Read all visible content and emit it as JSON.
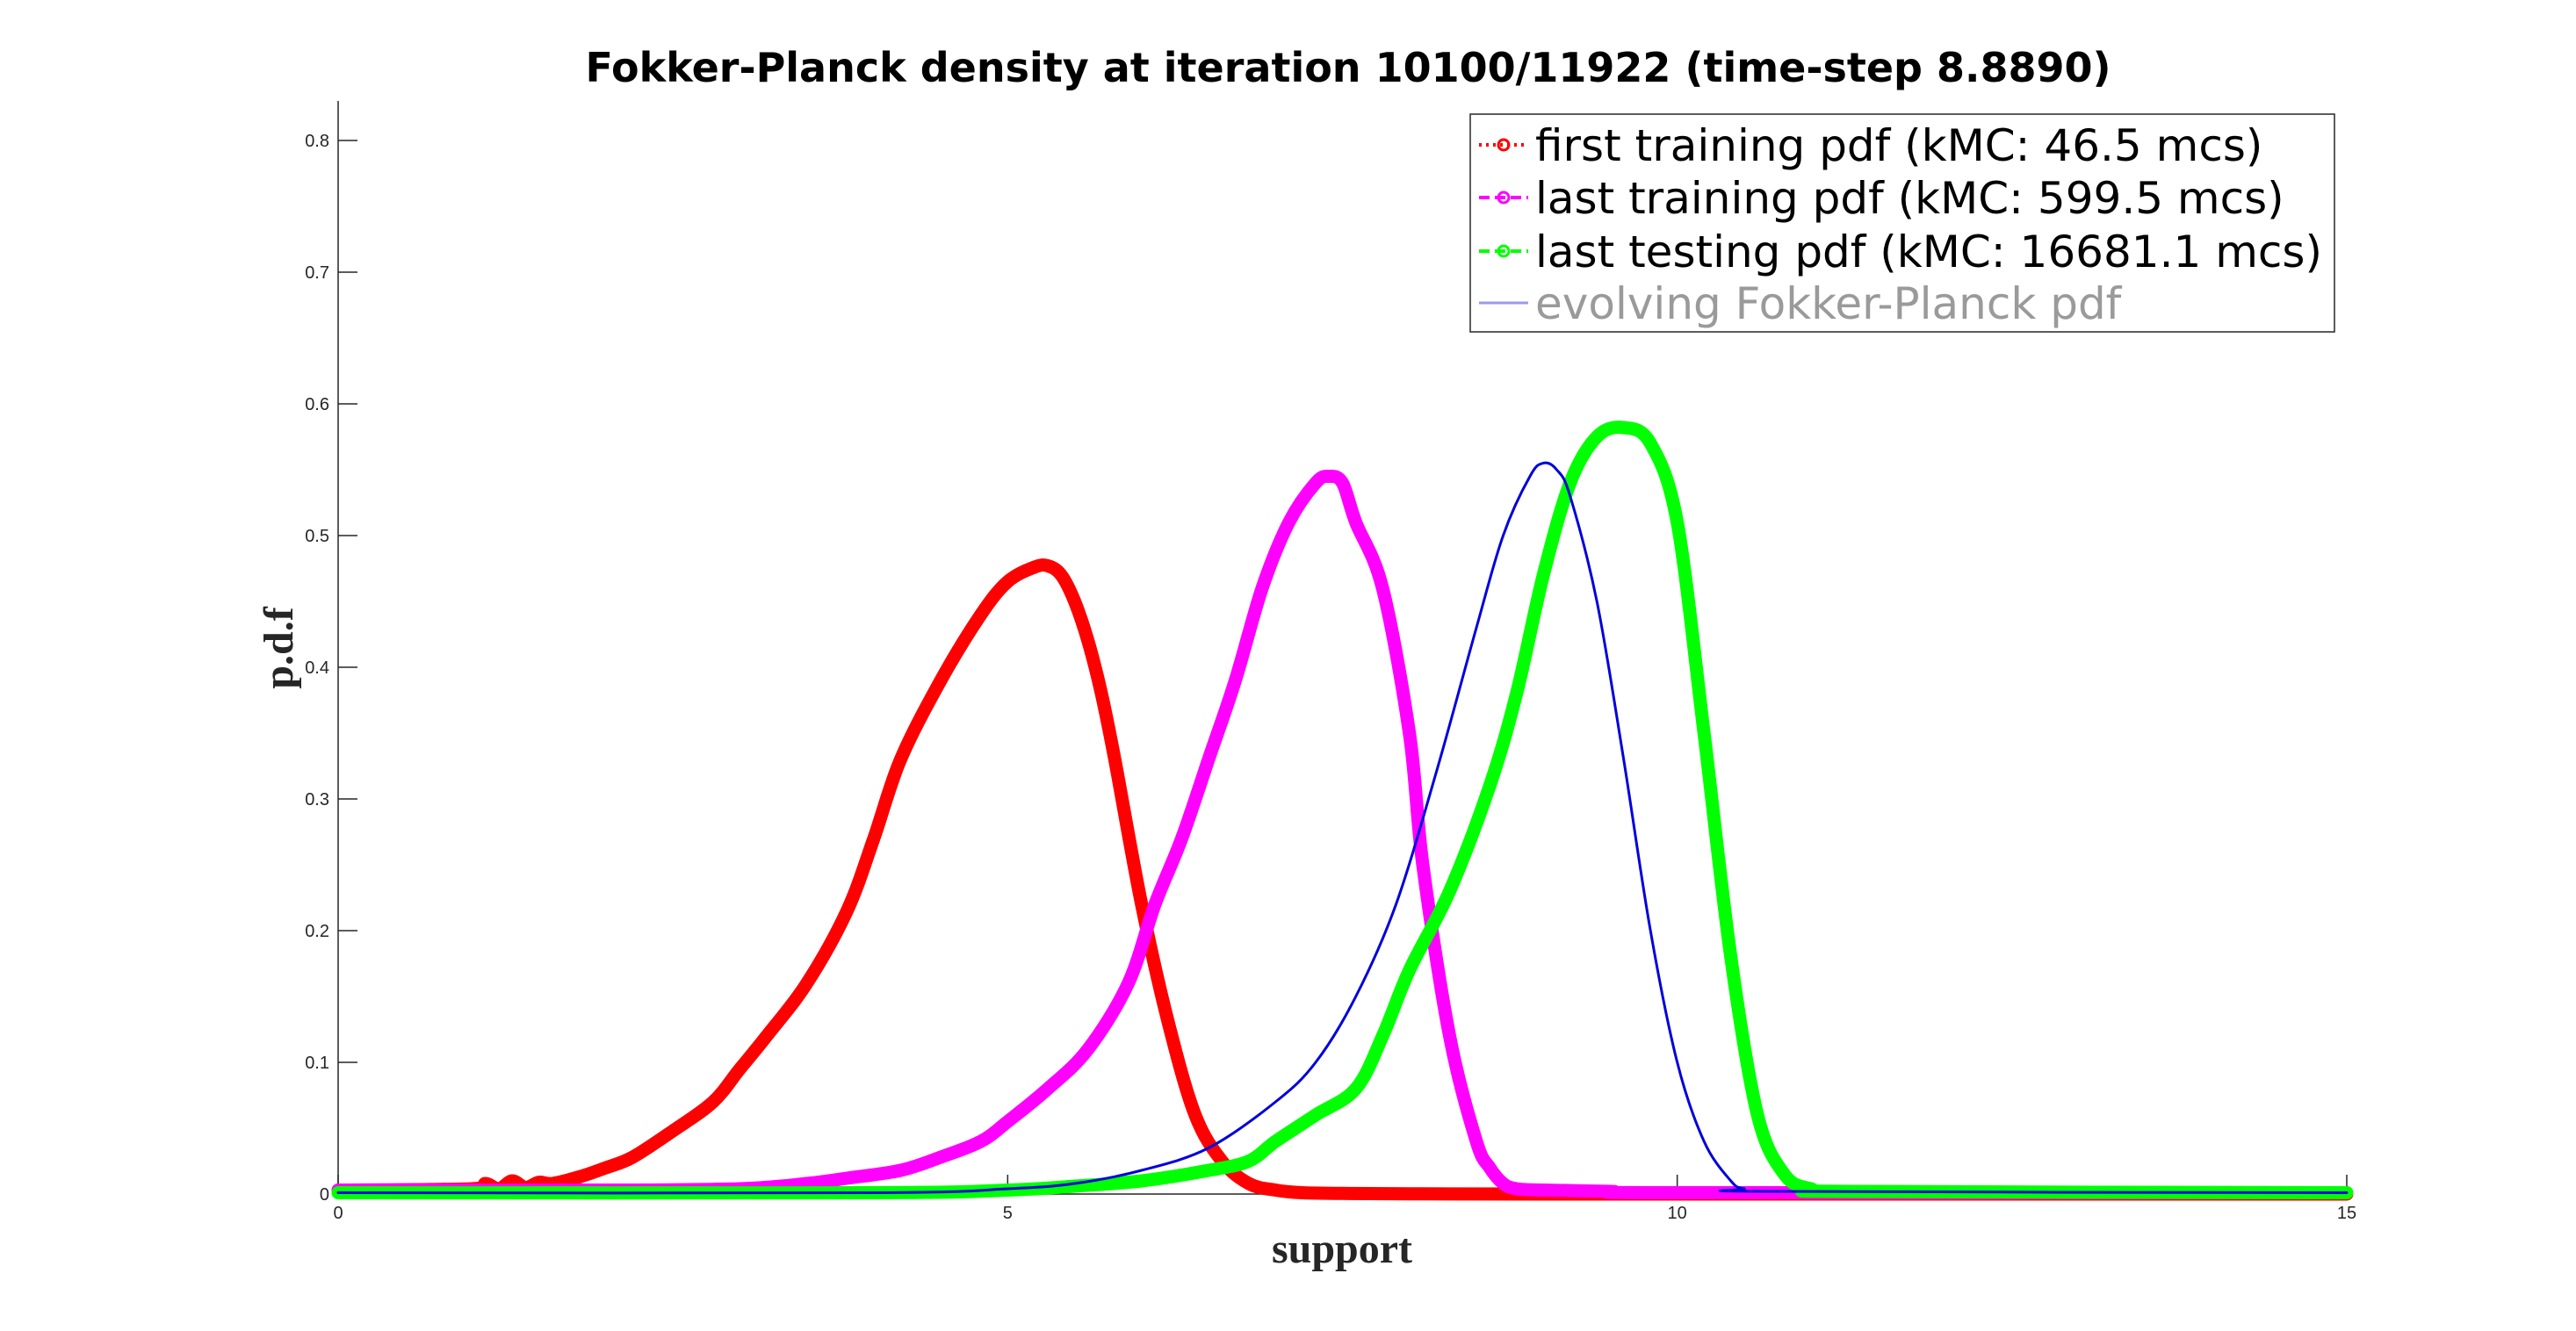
{
  "chart_data": {
    "type": "line",
    "title": "Fokker-Planck density at iteration 10100/11922 (time-step 8.8890)",
    "xlabel": "support",
    "ylabel": "p.d.f",
    "xlim": [
      0,
      15
    ],
    "ylim": [
      0,
      0.83
    ],
    "xticks": [
      "0",
      "5",
      "10",
      "15"
    ],
    "xtick_values": [
      0,
      5,
      10,
      15
    ],
    "yticks": [
      "0",
      "0.1",
      "0.2",
      "0.3",
      "0.4",
      "0.5",
      "0.6",
      "0.7",
      "0.8"
    ],
    "ytick_values": [
      0,
      0.1,
      0.2,
      0.3,
      0.4,
      0.5,
      0.6,
      0.7,
      0.8
    ],
    "grid": false,
    "legend_position": "top-right",
    "series": [
      {
        "name": "first training pdf (kMC: 46.5 mcs)",
        "color": "#ff0000",
        "style": "thick",
        "x": [
          0,
          1.0,
          1.1,
          1.2,
          1.3,
          1.4,
          1.5,
          1.6,
          1.8,
          2.0,
          2.2,
          2.5,
          2.8,
          3.0,
          3.2,
          3.5,
          3.8,
          4.0,
          4.2,
          4.5,
          4.8,
          5.0,
          5.2,
          5.3,
          5.4,
          5.5,
          5.6,
          5.7,
          5.8,
          6.0,
          6.2,
          6.4,
          6.6,
          6.8,
          7.0,
          7.2,
          7.5,
          8.0,
          9.0,
          15
        ],
        "y": [
          0.003,
          0.004,
          0.008,
          0.004,
          0.01,
          0.005,
          0.009,
          0.008,
          0.013,
          0.02,
          0.028,
          0.048,
          0.07,
          0.095,
          0.12,
          0.16,
          0.215,
          0.27,
          0.33,
          0.39,
          0.44,
          0.465,
          0.476,
          0.477,
          0.47,
          0.45,
          0.42,
          0.38,
          0.33,
          0.22,
          0.13,
          0.06,
          0.025,
          0.008,
          0.003,
          0.001,
          0.0005,
          0.0002,
          0,
          0
        ]
      },
      {
        "name": "last training pdf (kMC: 599.5 mcs)",
        "color": "#ff00ff",
        "style": "thick",
        "x": [
          0,
          2.0,
          3.0,
          3.5,
          3.8,
          4.2,
          4.5,
          4.8,
          5.0,
          5.3,
          5.6,
          5.9,
          6.1,
          6.3,
          6.5,
          6.7,
          6.9,
          7.1,
          7.3,
          7.4,
          7.5,
          7.6,
          7.8,
          8.0,
          8.1,
          8.3,
          8.5,
          8.6,
          8.7,
          8.8,
          9.0,
          9.5,
          10.0,
          15
        ],
        "y": [
          0.003,
          0.003,
          0.004,
          0.008,
          0.012,
          0.018,
          0.028,
          0.04,
          0.055,
          0.08,
          0.11,
          0.16,
          0.22,
          0.27,
          0.33,
          0.39,
          0.46,
          0.51,
          0.54,
          0.545,
          0.54,
          0.51,
          0.46,
          0.35,
          0.25,
          0.12,
          0.04,
          0.02,
          0.008,
          0.004,
          0.003,
          0.002,
          0.001,
          0.001
        ]
      },
      {
        "name": "last testing pdf (kMC: 16681.1 mcs)",
        "color": "#00ff00",
        "style": "thick",
        "x": [
          0,
          4.0,
          5.0,
          5.5,
          6.0,
          6.5,
          6.8,
          7.0,
          7.3,
          7.6,
          7.8,
          8.0,
          8.3,
          8.6,
          8.8,
          9.0,
          9.2,
          9.4,
          9.6,
          9.8,
          10.0,
          10.2,
          10.4,
          10.6,
          10.8,
          11.0,
          11.3,
          15
        ],
        "y": [
          0.001,
          0.001,
          0.003,
          0.006,
          0.01,
          0.018,
          0.025,
          0.04,
          0.06,
          0.08,
          0.12,
          0.17,
          0.23,
          0.31,
          0.38,
          0.47,
          0.54,
          0.575,
          0.582,
          0.57,
          0.51,
          0.35,
          0.18,
          0.06,
          0.015,
          0.004,
          0.002,
          0.001
        ]
      },
      {
        "name": "evolving Fokker-Planck pdf",
        "color": "#0000dd",
        "style": "thin",
        "x": [
          0,
          4.0,
          5.0,
          5.5,
          6.0,
          6.5,
          7.0,
          7.3,
          7.6,
          7.9,
          8.2,
          8.5,
          8.7,
          8.9,
          9.0,
          9.1,
          9.2,
          9.4,
          9.6,
          9.8,
          10.0,
          10.2,
          10.4,
          10.5,
          10.7,
          15
        ],
        "y": [
          0.001,
          0.001,
          0.004,
          0.008,
          0.018,
          0.035,
          0.07,
          0.1,
          0.15,
          0.22,
          0.32,
          0.43,
          0.5,
          0.545,
          0.555,
          0.55,
          0.53,
          0.45,
          0.33,
          0.2,
          0.1,
          0.04,
          0.01,
          0.004,
          0.002,
          0.001
        ]
      }
    ]
  }
}
